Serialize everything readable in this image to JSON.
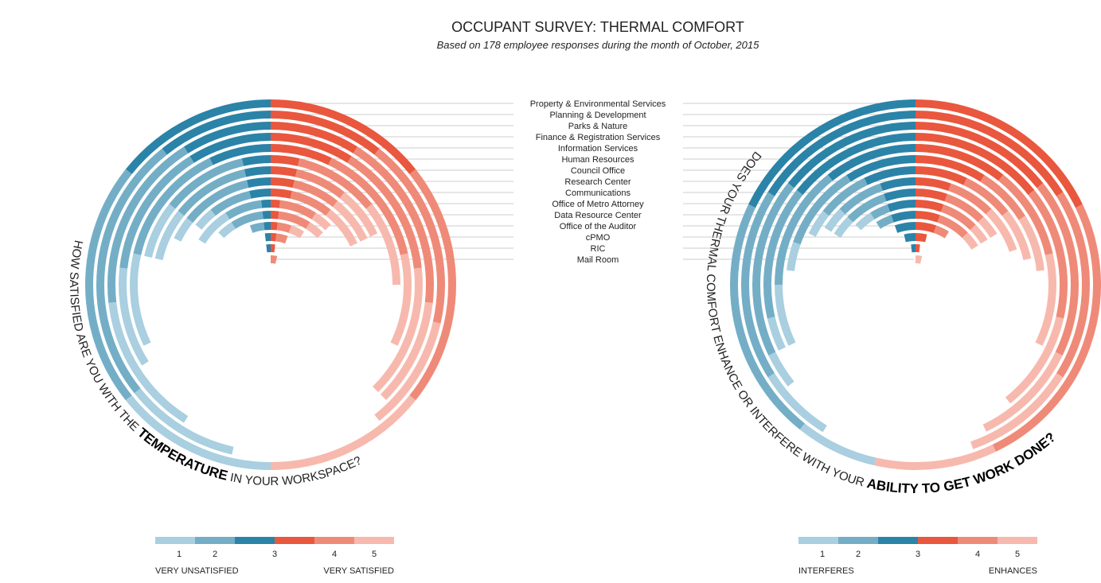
{
  "title": "OCCUPANT SURVEY: THERMAL COMFORT",
  "subtitle": "Based on 178 employee responses during the month of October, 2015",
  "chart_data": [
    {
      "type": "radial_bar",
      "question": [
        "HOW SATISFIED ARE YOU WITH THE ",
        "TEMPERATURE",
        " IN YOUR WORKSPACE?"
      ],
      "legend_low": "VERY UNSATISFIED",
      "legend_high": "VERY SATISFIED",
      "categories": [
        "Property & Environmental Services",
        "Planning & Development",
        "Parks & Nature",
        "Finance & Registration Services",
        "Information Services",
        "Human Resources",
        "Council Office",
        "Research Center",
        "Communications",
        "Office of Metro Attorney",
        "Data Resource Center",
        "Office of the Auditor",
        "cPMO",
        "RIC",
        "Mail Room"
      ],
      "series": [
        {
          "name": "1",
          "color": "#a9cfe0",
          "values": [
            4,
            3,
            4,
            3,
            3,
            2,
            2,
            1,
            1,
            2,
            1,
            0,
            0,
            0,
            0
          ]
        },
        {
          "name": "2",
          "color": "#74aec6",
          "values": [
            6,
            7,
            5,
            4,
            4,
            3,
            3,
            3,
            2,
            2,
            2,
            1,
            0,
            0,
            0
          ]
        },
        {
          "name": "3",
          "colors": [
            "#2b83a8",
            "#e9573e"
          ],
          "values": [
            8,
            6,
            5,
            5,
            4,
            2,
            2,
            2,
            2,
            1,
            1,
            1,
            1,
            1,
            0
          ]
        },
        {
          "name": "4",
          "color": "#ef8a78",
          "values": [
            6,
            5,
            5,
            4,
            4,
            3,
            2,
            2,
            2,
            2,
            2,
            1,
            1,
            0,
            1
          ]
        },
        {
          "name": "5",
          "color": "#f7b9ad",
          "values": [
            4,
            3,
            3,
            4,
            3,
            3,
            2,
            2,
            2,
            1,
            1,
            1,
            0,
            0,
            0
          ]
        }
      ]
    },
    {
      "type": "radial_bar",
      "question": [
        "DOES YOUR THERMAL COMFORT ENHANCE OR INTERFERE WITH YOUR ",
        "ABILITY TO GET WORK DONE?"
      ],
      "legend_low": "INTERFERES",
      "legend_high": "ENHANCES",
      "series": [
        {
          "name": "1",
          "color": "#a9cfe0",
          "values": [
            2,
            2,
            1,
            1,
            2,
            1,
            1,
            1,
            1,
            1,
            0,
            0,
            0,
            0,
            0
          ]
        },
        {
          "name": "2",
          "color": "#74aec6",
          "values": [
            6,
            5,
            5,
            4,
            4,
            3,
            2,
            2,
            2,
            1,
            1,
            0,
            0,
            0,
            0
          ]
        },
        {
          "name": "3",
          "colors": [
            "#2b83a8",
            "#e9573e"
          ],
          "values": [
            10,
            9,
            8,
            8,
            6,
            5,
            4,
            3,
            3,
            3,
            3,
            3,
            2,
            1,
            0
          ]
        },
        {
          "name": "4",
          "color": "#ef8a78",
          "values": [
            7,
            5,
            5,
            4,
            3,
            2,
            2,
            2,
            2,
            2,
            2,
            1,
            0,
            0,
            0
          ]
        },
        {
          "name": "5",
          "color": "#f7b9ad",
          "values": [
            3,
            3,
            3,
            3,
            3,
            2,
            2,
            2,
            1,
            1,
            1,
            0,
            0,
            0,
            1
          ]
        }
      ]
    }
  ]
}
